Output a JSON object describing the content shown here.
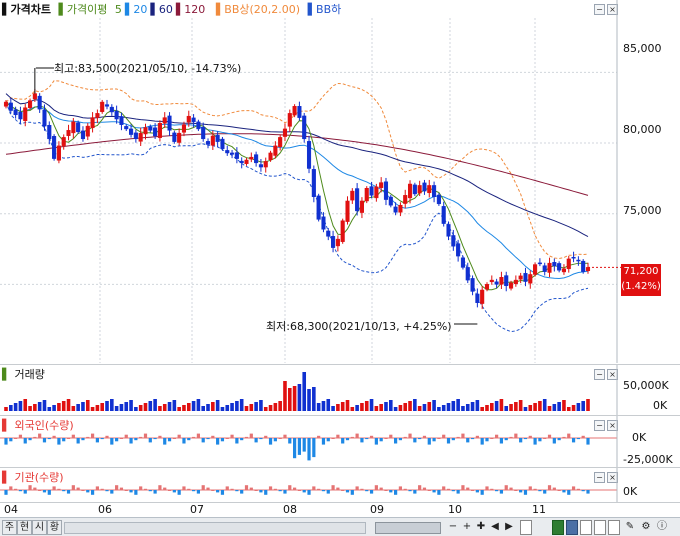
{
  "legend": {
    "title": "가격차트",
    "ma_label": "가격이평",
    "ma_periods": [
      "5",
      "20",
      "60",
      "120"
    ],
    "ma_colors": [
      "#4e8a1c",
      "#1e88e5",
      "#1a237e",
      "#8b1a3a"
    ],
    "bb_upper": "BB상(20,2.00)",
    "bb_lower": "BB하",
    "bb_color": "#f08a3c",
    "bb_lower_color": "#2255cc"
  },
  "annotations": {
    "high": "최고:83,500(2021/05/10, -14.73%)",
    "low": "최저:68,300(2021/10/13, +4.25%)"
  },
  "current_price": {
    "value": "71,200",
    "change": "(1.42%)"
  },
  "y_axis": {
    "labels": [
      "85,000",
      "80,000",
      "75,000"
    ]
  },
  "x_axis": {
    "labels": [
      "04",
      "06",
      "07",
      "08",
      "09",
      "10",
      "11"
    ]
  },
  "volume_panel": {
    "title": "거래량",
    "labels": [
      "50,000K",
      "0K"
    ]
  },
  "foreign_panel": {
    "title": "외국인(수량)",
    "labels": [
      "0K",
      "-25,000K"
    ]
  },
  "inst_panel": {
    "title": "기관(수량)",
    "labels": [
      "0K"
    ]
  },
  "toolbar": {
    "left_buttons": [
      "주",
      "현",
      "시",
      "황"
    ],
    "right_symbols": [
      "−",
      "+",
      "✚",
      "◀",
      "▶"
    ]
  },
  "chart_data": {
    "type": "line",
    "ylim": [
      65000,
      88000
    ],
    "x_labels": [
      "04",
      "06",
      "07",
      "08",
      "09",
      "10",
      "11"
    ],
    "high_point": {
      "value": 83500,
      "date": "2021/05/10"
    },
    "low_point": {
      "value": 68300,
      "date": "2021/10/13"
    },
    "last_close": 71200,
    "close": [
      82900,
      82300,
      82000,
      81700,
      82500,
      83000,
      83500,
      82400,
      81200,
      80300,
      78900,
      79800,
      80400,
      80900,
      81500,
      80800,
      80300,
      81200,
      81800,
      82100,
      82900,
      82600,
      82200,
      81700,
      81300,
      81000,
      80600,
      80300,
      80700,
      81100,
      80900,
      80500,
      81400,
      81800,
      80900,
      80100,
      80700,
      81300,
      81900,
      81500,
      81000,
      80300,
      79900,
      80500,
      80100,
      79600,
      79300,
      79200,
      78900,
      78600,
      78800,
      79000,
      78600,
      78300,
      78700,
      79300,
      79800,
      80400,
      81000,
      82100,
      82600,
      81800,
      80300,
      78200,
      76200,
      74600,
      73900,
      73400,
      72600,
      73200,
      74500,
      75900,
      76600,
      75200,
      75900,
      76800,
      76300,
      76900,
      77200,
      76000,
      75600,
      75100,
      75600,
      76300,
      77100,
      76400,
      77000,
      76600,
      77000,
      76200,
      75700,
      74300,
      73400,
      72700,
      72000,
      71200,
      70300,
      69500,
      68700,
      69600,
      70000,
      70300,
      70000,
      70500,
      69900,
      70100,
      70300,
      70600,
      70200,
      70700,
      71400,
      71500,
      70900,
      71500,
      71300,
      71000,
      71100,
      71800,
      71900,
      71700,
      70900,
      71200
    ],
    "ma_last": {
      "ma5": 71100,
      "ma20": 71000,
      "ma60": 72800,
      "ma120": 76400
    },
    "volume_series_name": "거래량"
  }
}
